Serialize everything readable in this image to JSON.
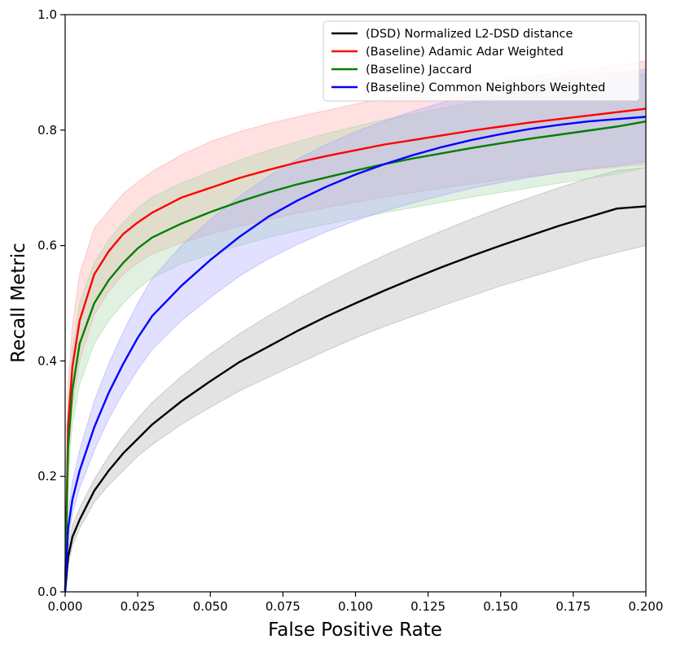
{
  "chart_data": {
    "type": "line",
    "title": "",
    "xlabel": "False Positive Rate",
    "ylabel": "Recall Metric",
    "xlim": [
      0.0,
      0.2
    ],
    "ylim": [
      0.0,
      1.0
    ],
    "grid": false,
    "legend_position": "top-right",
    "x_ticks": [
      "0.000",
      "0.025",
      "0.050",
      "0.075",
      "0.100",
      "0.125",
      "0.150",
      "0.175",
      "0.200"
    ],
    "y_ticks": [
      "0.0",
      "0.2",
      "0.4",
      "0.6",
      "0.8",
      "1.0"
    ],
    "x": [
      0.0,
      0.001,
      0.0025,
      0.005,
      0.01,
      0.015,
      0.02,
      0.025,
      0.03,
      0.04,
      0.05,
      0.06,
      0.07,
      0.08,
      0.09,
      0.1,
      0.11,
      0.12,
      0.13,
      0.14,
      0.15,
      0.16,
      0.17,
      0.18,
      0.19,
      0.2
    ],
    "series": [
      {
        "name": "(DSD) Normalized L2-DSD distance",
        "color": "#000000",
        "band_color": "#b0b0b0",
        "values": [
          0.0,
          0.06,
          0.095,
          0.125,
          0.175,
          0.21,
          0.24,
          0.265,
          0.29,
          0.33,
          0.365,
          0.398,
          0.425,
          0.452,
          0.477,
          0.5,
          0.522,
          0.543,
          0.563,
          0.582,
          0.6,
          0.617,
          0.634,
          0.649,
          0.664,
          0.668
        ],
        "lower": [
          0.0,
          0.045,
          0.08,
          0.11,
          0.155,
          0.185,
          0.21,
          0.235,
          0.255,
          0.29,
          0.32,
          0.348,
          0.372,
          0.395,
          0.418,
          0.44,
          0.46,
          0.478,
          0.496,
          0.513,
          0.53,
          0.545,
          0.56,
          0.575,
          0.588,
          0.6
        ],
        "upper": [
          0.0,
          0.075,
          0.115,
          0.145,
          0.195,
          0.235,
          0.27,
          0.3,
          0.328,
          0.373,
          0.412,
          0.447,
          0.478,
          0.507,
          0.534,
          0.559,
          0.583,
          0.605,
          0.626,
          0.646,
          0.665,
          0.683,
          0.7,
          0.716,
          0.73,
          0.735
        ]
      },
      {
        "name": "(Baseline) Adamic Adar Weighted",
        "color": "#ff0000",
        "band_color": "#ffaaaa",
        "values": [
          0.0,
          0.29,
          0.39,
          0.47,
          0.55,
          0.59,
          0.62,
          0.64,
          0.657,
          0.683,
          0.7,
          0.717,
          0.731,
          0.744,
          0.755,
          0.765,
          0.775,
          0.783,
          0.791,
          0.799,
          0.806,
          0.813,
          0.819,
          0.825,
          0.831,
          0.837
        ],
        "lower": [
          0.0,
          0.23,
          0.32,
          0.4,
          0.48,
          0.52,
          0.55,
          0.57,
          0.585,
          0.605,
          0.62,
          0.633,
          0.645,
          0.656,
          0.666,
          0.675,
          0.684,
          0.692,
          0.7,
          0.707,
          0.714,
          0.72,
          0.726,
          0.731,
          0.736,
          0.74
        ],
        "upper": [
          0.0,
          0.36,
          0.46,
          0.55,
          0.63,
          0.66,
          0.69,
          0.71,
          0.728,
          0.757,
          0.78,
          0.797,
          0.811,
          0.823,
          0.834,
          0.845,
          0.855,
          0.864,
          0.872,
          0.879,
          0.886,
          0.893,
          0.9,
          0.906,
          0.912,
          0.92
        ]
      },
      {
        "name": "(Baseline) Jaccard",
        "color": "#008000",
        "band_color": "#a8d8a8",
        "values": [
          0.0,
          0.25,
          0.35,
          0.43,
          0.5,
          0.54,
          0.57,
          0.595,
          0.614,
          0.638,
          0.658,
          0.676,
          0.692,
          0.706,
          0.718,
          0.73,
          0.741,
          0.751,
          0.76,
          0.769,
          0.777,
          0.785,
          0.792,
          0.799,
          0.806,
          0.815
        ],
        "lower": [
          0.0,
          0.2,
          0.29,
          0.36,
          0.43,
          0.47,
          0.5,
          0.525,
          0.544,
          0.568,
          0.585,
          0.6,
          0.614,
          0.626,
          0.637,
          0.647,
          0.657,
          0.666,
          0.675,
          0.684,
          0.692,
          0.7,
          0.708,
          0.716,
          0.724,
          0.735
        ],
        "upper": [
          0.0,
          0.31,
          0.42,
          0.5,
          0.57,
          0.61,
          0.64,
          0.665,
          0.684,
          0.708,
          0.728,
          0.748,
          0.765,
          0.78,
          0.794,
          0.806,
          0.818,
          0.828,
          0.838,
          0.848,
          0.857,
          0.866,
          0.874,
          0.882,
          0.89,
          0.898
        ]
      },
      {
        "name": "(Baseline) Common Neighbors Weighted",
        "color": "#0000ff",
        "band_color": "#aaaaff",
        "values": [
          0.0,
          0.11,
          0.16,
          0.21,
          0.285,
          0.345,
          0.395,
          0.44,
          0.478,
          0.53,
          0.575,
          0.615,
          0.65,
          0.678,
          0.702,
          0.723,
          0.741,
          0.757,
          0.771,
          0.783,
          0.793,
          0.802,
          0.809,
          0.815,
          0.819,
          0.823
        ],
        "lower": [
          0.0,
          0.09,
          0.135,
          0.18,
          0.245,
          0.3,
          0.345,
          0.385,
          0.42,
          0.47,
          0.51,
          0.547,
          0.577,
          0.602,
          0.624,
          0.643,
          0.66,
          0.674,
          0.687,
          0.699,
          0.709,
          0.718,
          0.726,
          0.733,
          0.738,
          0.745
        ],
        "upper": [
          0.0,
          0.135,
          0.19,
          0.245,
          0.33,
          0.395,
          0.45,
          0.5,
          0.543,
          0.6,
          0.645,
          0.685,
          0.72,
          0.75,
          0.775,
          0.797,
          0.816,
          0.833,
          0.848,
          0.861,
          0.872,
          0.882,
          0.89,
          0.896,
          0.9,
          0.905
        ]
      }
    ]
  }
}
